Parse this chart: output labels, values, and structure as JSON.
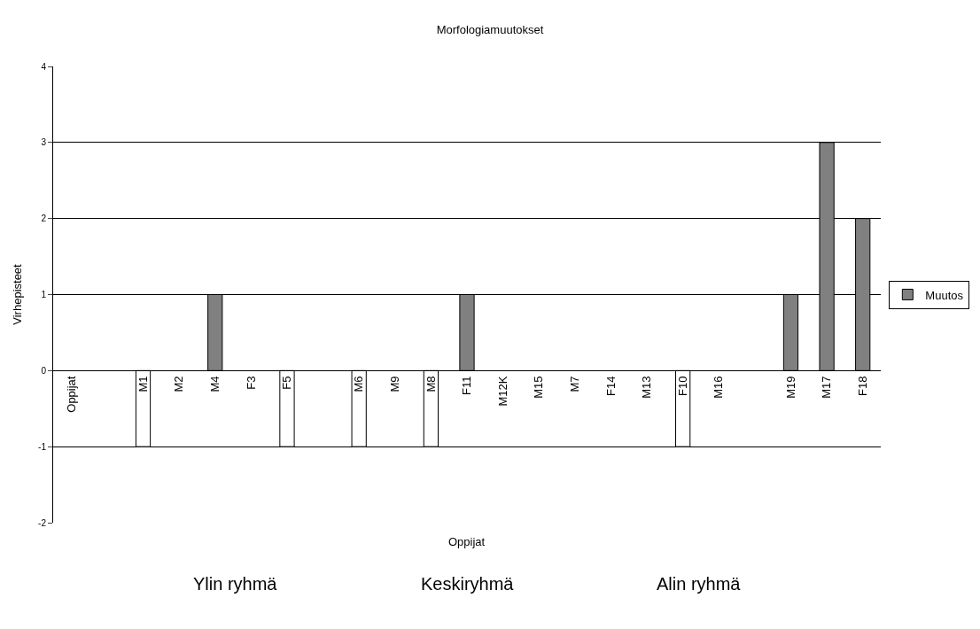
{
  "chart_data": {
    "type": "bar",
    "title": "Morfologiamuutokset",
    "xlabel": "Oppijat",
    "ylabel": "Virhepisteet",
    "categories": [
      "Oppijat",
      null,
      "M1",
      "M2",
      "M4",
      "F3",
      "F5",
      null,
      "M6",
      "M9",
      "M8",
      "F11",
      "M12K",
      "M15",
      "M7",
      "F14",
      "M13",
      "F10",
      "M16",
      null,
      "M19",
      "M17",
      "F18"
    ],
    "series": [
      {
        "name": "Muutos",
        "color": "#808080",
        "values": [
          0,
          0,
          -1,
          0,
          1,
          0,
          -1,
          0,
          -1,
          0,
          -1,
          1,
          0,
          0,
          0,
          0,
          0,
          -1,
          0,
          0,
          1,
          3,
          2
        ],
        "colors": [
          "#808080",
          "#808080",
          "#ffffff",
          "#808080",
          "#808080",
          "#808080",
          "#ffffff",
          "#808080",
          "#ffffff",
          "#808080",
          "#ffffff",
          "#808080",
          "#808080",
          "#808080",
          "#808080",
          "#808080",
          "#808080",
          "#ffffff",
          "#808080",
          "#808080",
          "#808080",
          "#808080",
          "#808080"
        ]
      }
    ],
    "ylim": [
      -2,
      4
    ],
    "yticks": [
      -2,
      -1,
      0,
      1,
      2,
      3,
      4
    ],
    "grid": "y",
    "legend": "right",
    "annotations": [
      "Ylin ryhmä",
      "Keskiryhmä",
      "Alin ryhmä"
    ]
  }
}
